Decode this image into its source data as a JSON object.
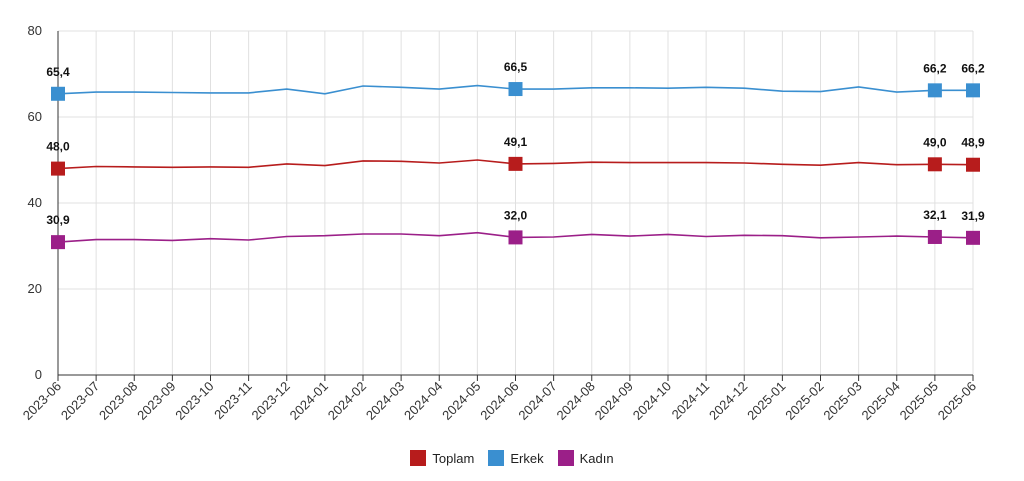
{
  "chart_data": {
    "type": "line",
    "title": "",
    "xlabel": "",
    "ylabel": "",
    "ylim": [
      0,
      80
    ],
    "yticks": [
      0,
      20,
      40,
      60,
      80
    ],
    "grid": true,
    "legend_position": "bottom-center",
    "categories": [
      "2023-06",
      "2023-07",
      "2023-08",
      "2023-09",
      "2023-10",
      "2023-11",
      "2023-12",
      "2024-01",
      "2024-02",
      "2024-03",
      "2024-04",
      "2024-05",
      "2024-06",
      "2024-07",
      "2024-08",
      "2024-09",
      "2024-10",
      "2024-11",
      "2024-12",
      "2025-01",
      "2025-02",
      "2025-03",
      "2025-04",
      "2025-05",
      "2025-06"
    ],
    "series": [
      {
        "name": "Toplam",
        "color": "#b71c1c",
        "values": [
          48.0,
          48.5,
          48.4,
          48.3,
          48.4,
          48.3,
          49.1,
          48.7,
          49.8,
          49.7,
          49.3,
          50.0,
          49.1,
          49.2,
          49.5,
          49.4,
          49.4,
          49.4,
          49.3,
          49.0,
          48.8,
          49.4,
          48.9,
          49.0,
          48.9
        ],
        "labels": [
          {
            "index": 0,
            "text": "48,0"
          },
          {
            "index": 12,
            "text": "49,1"
          },
          {
            "index": 23,
            "text": "49,0"
          },
          {
            "index": 24,
            "text": "48,9"
          }
        ]
      },
      {
        "name": "Erkek",
        "color": "#3a8fd0",
        "values": [
          65.4,
          65.8,
          65.8,
          65.7,
          65.6,
          65.6,
          66.5,
          65.4,
          67.2,
          66.9,
          66.5,
          67.3,
          66.5,
          66.5,
          66.8,
          66.8,
          66.7,
          66.9,
          66.7,
          66.0,
          65.9,
          67.0,
          65.8,
          66.2,
          66.2
        ],
        "labels": [
          {
            "index": 0,
            "text": "65,4"
          },
          {
            "index": 12,
            "text": "66,5"
          },
          {
            "index": 23,
            "text": "66,2"
          },
          {
            "index": 24,
            "text": "66,2"
          }
        ]
      },
      {
        "name": "Kadın",
        "color": "#9b1f88",
        "values": [
          30.9,
          31.5,
          31.5,
          31.3,
          31.7,
          31.4,
          32.2,
          32.4,
          32.8,
          32.8,
          32.4,
          33.1,
          32.0,
          32.1,
          32.7,
          32.3,
          32.7,
          32.2,
          32.5,
          32.4,
          31.9,
          32.1,
          32.3,
          32.1,
          31.9
        ],
        "labels": [
          {
            "index": 0,
            "text": "30,9"
          },
          {
            "index": 12,
            "text": "32,0"
          },
          {
            "index": 23,
            "text": "32,1"
          },
          {
            "index": 24,
            "text": "31,9"
          }
        ]
      }
    ]
  }
}
